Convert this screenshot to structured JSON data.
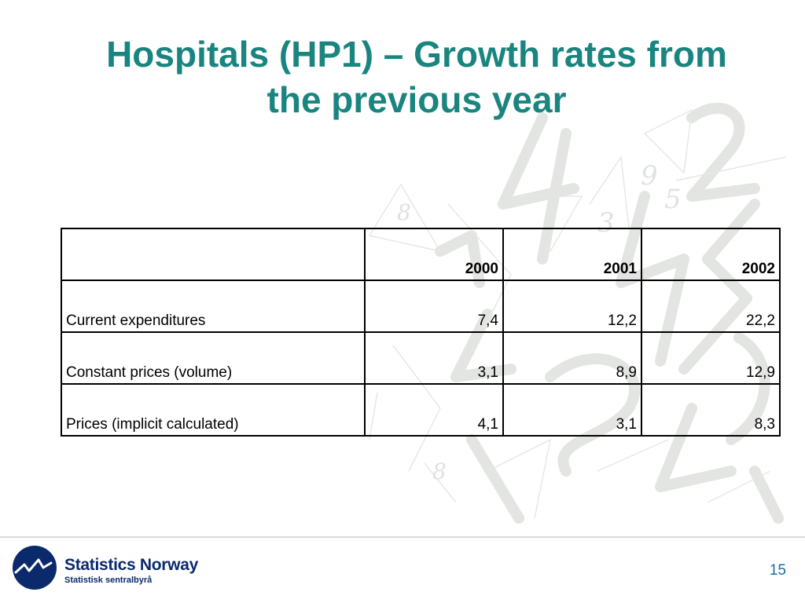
{
  "slide": {
    "title_line1": "Hospitals (HP1) – Growth rates from",
    "title_line2": "the previous year",
    "page_number": "15"
  },
  "table": {
    "header": [
      "",
      "2000",
      "2001",
      "2002"
    ],
    "rows": [
      [
        "Current expenditures",
        "7,4",
        "12,2",
        "22,2"
      ],
      [
        "Constant prices (volume)",
        "3,1",
        "8,9",
        "12,9"
      ],
      [
        "Prices (implicit calculated)",
        "4,1",
        "3,1",
        "8,3"
      ]
    ]
  },
  "logo": {
    "name": "Statistics Norway",
    "subtitle": "Statistisk sentralbyrå",
    "icon": "ssb-wave-logo-icon"
  },
  "colors": {
    "title": "#1a8580",
    "logo_blue": "#0b2a6b",
    "page_number": "#1a6fa0"
  }
}
